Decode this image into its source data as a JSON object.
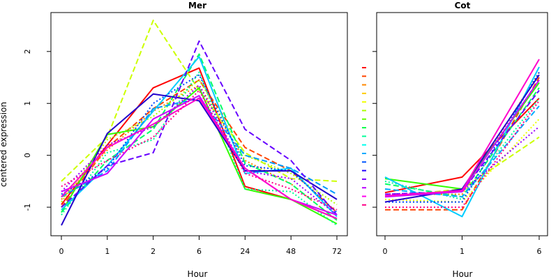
{
  "ylabel": "centered expression",
  "colors": [
    "#ff0000",
    "#ff4400",
    "#ff8800",
    "#ffcc00",
    "#eeff00",
    "#aaff00",
    "#66ff00",
    "#00ff44",
    "#00ff99",
    "#00ffee",
    "#00aaff",
    "#0055ff",
    "#2200ff",
    "#7700ff",
    "#bb00ff",
    "#ff00ee",
    "#ff0088"
  ],
  "chart_data": [
    {
      "type": "line",
      "title": "Mer",
      "xlabel": "Hour",
      "categories": [
        "0",
        "1",
        "2",
        "6",
        "24",
        "48",
        "72"
      ],
      "y_ticks": [
        -1,
        0,
        1,
        2
      ],
      "ylim": [
        -1.55,
        2.75
      ],
      "series": [
        {
          "color": "#ff0000",
          "dash": "solid",
          "values": [
            -0.95,
            0.2,
            1.3,
            1.68,
            -0.6,
            -0.85,
            -1.22
          ]
        },
        {
          "color": "#ff4400",
          "dash": "dashed",
          "values": [
            -1.0,
            0.15,
            0.9,
            1.45,
            0.15,
            -0.3,
            -1.1
          ]
        },
        {
          "color": "#ff8800",
          "dash": "dotted",
          "values": [
            -0.85,
            0.1,
            0.85,
            1.35,
            -0.1,
            -0.55,
            -1.25
          ]
        },
        {
          "color": "#ccff00",
          "dash": "dashed",
          "values": [
            -0.5,
            0.35,
            2.6,
            1.25,
            0.05,
            -0.45,
            -0.5
          ]
        },
        {
          "color": "#aaff00",
          "dash": "dotted",
          "values": [
            -0.9,
            0.3,
            0.75,
            1.45,
            0.0,
            -0.35,
            -0.95
          ]
        },
        {
          "color": "#33ff00",
          "dash": "solid",
          "values": [
            -1.1,
            0.4,
            0.55,
            1.3,
            -0.65,
            -0.85,
            -1.32
          ]
        },
        {
          "color": "#00ff66",
          "dash": "dashed",
          "values": [
            -1.1,
            -0.1,
            0.5,
            1.95,
            -0.15,
            -0.55,
            -1.25
          ]
        },
        {
          "color": "#00ff99",
          "dash": "dotted",
          "values": [
            -1.15,
            0.05,
            0.3,
            1.6,
            -0.65,
            -0.7,
            -1.35
          ]
        },
        {
          "color": "#00ccff",
          "dash": "solid",
          "values": [
            -1.05,
            -0.2,
            0.85,
            1.9,
            -0.35,
            -0.25,
            -1.18
          ]
        },
        {
          "color": "#0099ff",
          "dash": "dashed",
          "values": [
            -0.8,
            -0.3,
            0.9,
            1.1,
            0.0,
            -0.25,
            -0.75
          ]
        },
        {
          "color": "#0044ff",
          "dash": "dotted",
          "values": [
            -0.75,
            -0.25,
            1.0,
            1.55,
            -0.2,
            -0.3,
            -1.1
          ]
        },
        {
          "color": "#2200cc",
          "dash": "solid",
          "values": [
            -1.35,
            0.42,
            1.18,
            1.05,
            -0.3,
            -0.3,
            -0.85
          ]
        },
        {
          "color": "#6600ff",
          "dash": "dashed",
          "values": [
            -1.0,
            -0.2,
            0.05,
            2.2,
            0.5,
            -0.1,
            -1.15
          ]
        },
        {
          "color": "#9900ff",
          "dash": "dotted",
          "values": [
            -0.7,
            0.2,
            0.55,
            1.35,
            -0.3,
            -0.45,
            -1.15
          ]
        },
        {
          "color": "#cc00ff",
          "dash": "solid",
          "values": [
            -0.7,
            -0.35,
            0.7,
            1.15,
            -0.25,
            -0.85,
            -1.15
          ]
        },
        {
          "color": "#ff00cc",
          "dash": "solid",
          "values": [
            -0.8,
            0.15,
            0.6,
            1.1,
            -0.25,
            -0.85,
            -1.22
          ]
        },
        {
          "color": "#ff0088",
          "dash": "dotted",
          "values": [
            -0.6,
            -0.1,
            0.35,
            1.25,
            -0.35,
            -0.65,
            -1.05
          ]
        }
      ]
    },
    {
      "type": "line",
      "title": "Cot",
      "xlabel": "Hour",
      "categories": [
        "0",
        "1",
        "6"
      ],
      "y_ticks": [
        -1,
        0,
        1,
        2
      ],
      "ylim": [
        -1.55,
        2.75
      ],
      "legend_colors": [
        "#ff0000",
        "#ff4400",
        "#ff8800",
        "#ffcc00",
        "#eeff00",
        "#aaff00",
        "#66ff00",
        "#00ff44",
        "#00ff99",
        "#00ffee",
        "#00aaff",
        "#0055ff",
        "#2200ff",
        "#7700ff",
        "#bb00ff",
        "#ff00ee",
        "#ff0088"
      ],
      "series": [
        {
          "color": "#ff0000",
          "dash": "solid",
          "values": [
            -0.72,
            -0.42,
            1.1
          ]
        },
        {
          "color": "#ff4400",
          "dash": "dashed",
          "values": [
            -1.05,
            -1.05,
            1.5
          ]
        },
        {
          "color": "#ff8800",
          "dash": "dotted",
          "values": [
            -0.75,
            -0.75,
            1.6
          ]
        },
        {
          "color": "#ccff00",
          "dash": "dashed",
          "values": [
            -0.8,
            -0.65,
            0.35
          ]
        },
        {
          "color": "#eeff00",
          "dash": "dotted",
          "values": [
            -0.85,
            -0.9,
            0.7
          ]
        },
        {
          "color": "#33ff00",
          "dash": "solid",
          "values": [
            -0.45,
            -0.65,
            1.4
          ]
        },
        {
          "color": "#00ff66",
          "dash": "dashed",
          "values": [
            -0.55,
            -0.8,
            1.3
          ]
        },
        {
          "color": "#00ff99",
          "dash": "dotted",
          "values": [
            -0.5,
            -0.85,
            1.1
          ]
        },
        {
          "color": "#00ccff",
          "dash": "solid",
          "values": [
            -0.42,
            -1.18,
            1.7
          ]
        },
        {
          "color": "#00aaff",
          "dash": "dashed",
          "values": [
            -0.65,
            -0.8,
            0.95
          ]
        },
        {
          "color": "#0044ff",
          "dash": "dotted",
          "values": [
            -0.9,
            -0.9,
            1.6
          ]
        },
        {
          "color": "#2200cc",
          "dash": "solid",
          "values": [
            -0.9,
            -0.65,
            1.55
          ]
        },
        {
          "color": "#6600ff",
          "dash": "dashed",
          "values": [
            -0.75,
            -0.7,
            1.25
          ]
        },
        {
          "color": "#9900ff",
          "dash": "dotted",
          "values": [
            -0.75,
            -0.7,
            0.55
          ]
        },
        {
          "color": "#cc00ff",
          "dash": "solid",
          "values": [
            -0.8,
            -0.7,
            1.45
          ]
        },
        {
          "color": "#ff00cc",
          "dash": "solid",
          "values": [
            -0.78,
            -0.68,
            1.85
          ]
        },
        {
          "color": "#ff0088",
          "dash": "dotted",
          "values": [
            -1.0,
            -1.0,
            1.05
          ]
        }
      ]
    }
  ]
}
